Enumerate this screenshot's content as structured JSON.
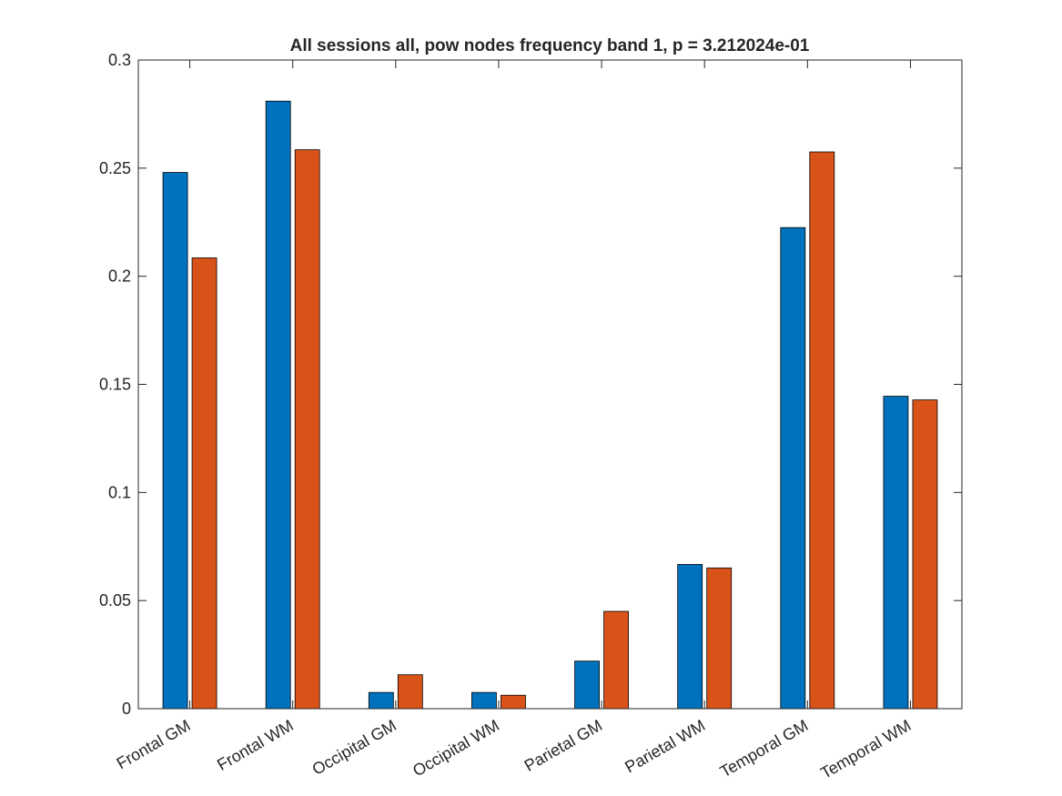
{
  "chart_data": {
    "type": "bar",
    "title": "All sessions all, pow nodes frequency band 1, p = 3.212024e-01",
    "xlabel": "",
    "ylabel": "",
    "categories": [
      "Frontal GM",
      "Frontal WM",
      "Occipital GM",
      "Occipital WM",
      "Parietal GM",
      "Parietal WM",
      "Temporal GM",
      "Temporal WM"
    ],
    "series": [
      {
        "values": [
          0.248,
          0.281,
          0.0075,
          0.0075,
          0.022,
          0.0667,
          0.2225,
          0.1445
        ]
      },
      {
        "values": [
          0.2085,
          0.2585,
          0.0157,
          0.0062,
          0.045,
          0.0651,
          0.2575,
          0.1428
        ]
      }
    ],
    "colors": [
      "#0072bd",
      "#d95319"
    ],
    "ylim": [
      0,
      0.3
    ],
    "yticks": [
      0,
      0.05,
      0.1,
      0.15,
      0.2,
      0.25,
      0.3
    ],
    "ytick_labels": [
      "0",
      "0.05",
      "0.1",
      "0.15",
      "0.2",
      "0.25",
      "0.3"
    ],
    "grid": false,
    "legend": "none"
  }
}
